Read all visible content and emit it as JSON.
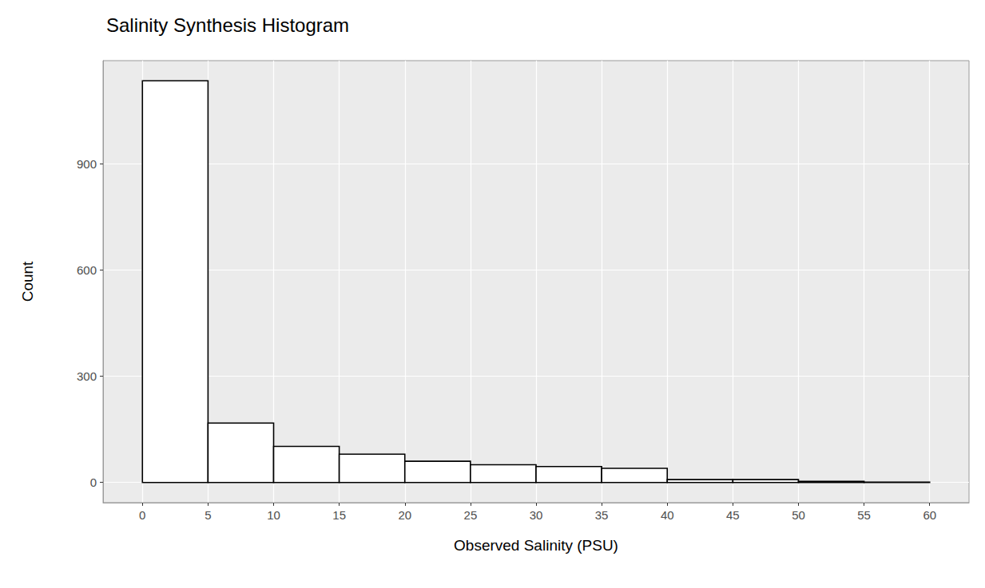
{
  "chart_data": {
    "type": "histogram",
    "title": "Salinity Synthesis Histogram",
    "xlabel": "Observed Salinity (PSU)",
    "ylabel": "Count",
    "bins": [
      0,
      5,
      10,
      15,
      20,
      25,
      30,
      35,
      40,
      45,
      50,
      55,
      60
    ],
    "values": [
      1135,
      168,
      102,
      80,
      60,
      50,
      45,
      40,
      8,
      8,
      3,
      1
    ],
    "color": "#ffffff",
    "xlim": [
      -3,
      63
    ],
    "xticks": [
      0,
      5,
      10,
      15,
      20,
      25,
      30,
      35,
      40,
      45,
      50,
      55,
      60
    ],
    "ylim": [
      -57,
      1192
    ],
    "yticks": [
      0,
      300,
      600,
      900
    ],
    "grid": true
  }
}
